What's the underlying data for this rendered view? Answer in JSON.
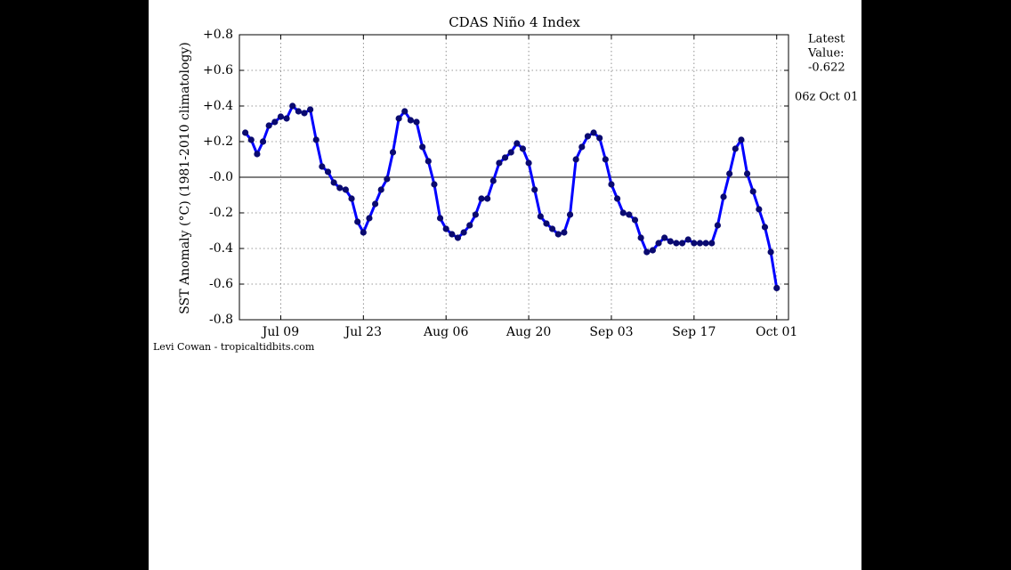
{
  "chart_data": {
    "type": "line",
    "title": "CDAS Niño 4 Index",
    "ylabel": "SST Anomaly (°C) (1981-2010 climatology)",
    "annotation_lines": [
      "Latest",
      "Value:"
    ],
    "latest_value": -0.622,
    "valid_time": "06z Oct 01",
    "credit": "Levi Cowan - tropicaltidbits.com",
    "color": "#0000ff",
    "marker_color": "#0a0a70",
    "grid": true,
    "zero_line": true,
    "x": [
      "Jul 03",
      "Jul 04",
      "Jul 05",
      "Jul 06",
      "Jul 07",
      "Jul 08",
      "Jul 09",
      "Jul 10",
      "Jul 11",
      "Jul 12",
      "Jul 13",
      "Jul 14",
      "Jul 15",
      "Jul 16",
      "Jul 17",
      "Jul 18",
      "Jul 19",
      "Jul 20",
      "Jul 21",
      "Jul 22",
      "Jul 23",
      "Jul 24",
      "Jul 25",
      "Jul 26",
      "Jul 27",
      "Jul 28",
      "Jul 29",
      "Jul 30",
      "Jul 31",
      "Aug 01",
      "Aug 02",
      "Aug 03",
      "Aug 04",
      "Aug 05",
      "Aug 06",
      "Aug 07",
      "Aug 08",
      "Aug 09",
      "Aug 10",
      "Aug 11",
      "Aug 12",
      "Aug 13",
      "Aug 14",
      "Aug 15",
      "Aug 16",
      "Aug 17",
      "Aug 18",
      "Aug 19",
      "Aug 20",
      "Aug 21",
      "Aug 22",
      "Aug 23",
      "Aug 24",
      "Aug 25",
      "Aug 26",
      "Aug 27",
      "Aug 28",
      "Aug 29",
      "Aug 30",
      "Aug 31",
      "Sep 01",
      "Sep 02",
      "Sep 03",
      "Sep 04",
      "Sep 05",
      "Sep 06",
      "Sep 07",
      "Sep 08",
      "Sep 09",
      "Sep 10",
      "Sep 11",
      "Sep 12",
      "Sep 13",
      "Sep 14",
      "Sep 15",
      "Sep 16",
      "Sep 17",
      "Sep 18",
      "Sep 19",
      "Sep 20",
      "Sep 21",
      "Sep 22",
      "Sep 23",
      "Sep 24",
      "Sep 25",
      "Sep 26",
      "Sep 27",
      "Sep 28",
      "Sep 29",
      "Sep 30",
      "Oct 01"
    ],
    "values": [
      0.25,
      0.21,
      0.13,
      0.2,
      0.29,
      0.31,
      0.34,
      0.33,
      0.4,
      0.37,
      0.36,
      0.38,
      0.21,
      0.06,
      0.03,
      -0.03,
      -0.06,
      -0.07,
      -0.12,
      -0.25,
      -0.31,
      -0.23,
      -0.15,
      -0.07,
      -0.01,
      0.14,
      0.33,
      0.37,
      0.32,
      0.31,
      0.17,
      0.09,
      -0.04,
      -0.23,
      -0.29,
      -0.32,
      -0.34,
      -0.31,
      -0.27,
      -0.21,
      -0.12,
      -0.12,
      -0.02,
      0.08,
      0.11,
      0.14,
      0.19,
      0.16,
      0.08,
      -0.07,
      -0.22,
      -0.26,
      -0.29,
      -0.32,
      -0.31,
      -0.21,
      0.1,
      0.17,
      0.23,
      0.25,
      0.22,
      0.1,
      -0.04,
      -0.12,
      -0.2,
      -0.21,
      -0.24,
      -0.34,
      -0.42,
      -0.41,
      -0.37,
      -0.34,
      -0.36,
      -0.37,
      -0.37,
      -0.35,
      -0.37,
      -0.37,
      -0.37,
      -0.37,
      -0.27,
      -0.11,
      0.02,
      0.16,
      0.21,
      0.02,
      -0.08,
      -0.18,
      -0.28,
      -0.42,
      -0.622
    ],
    "xlim": [
      "Jul 02",
      "Oct 03"
    ],
    "xticks": [
      "Jul 09",
      "Jul 23",
      "Aug 06",
      "Aug 20",
      "Sep 03",
      "Sep 17",
      "Oct 01"
    ],
    "ylim": [
      -0.8,
      0.8
    ],
    "yticks": [
      -0.8,
      -0.6,
      -0.4,
      -0.2,
      {
        "value": 0,
        "label": "-0.0"
      },
      {
        "value": 0.2,
        "label": "+0.2"
      },
      {
        "value": 0.4,
        "label": "+0.4"
      },
      {
        "value": 0.6,
        "label": "+0.6"
      },
      {
        "value": 0.8,
        "label": "+0.8"
      }
    ]
  }
}
